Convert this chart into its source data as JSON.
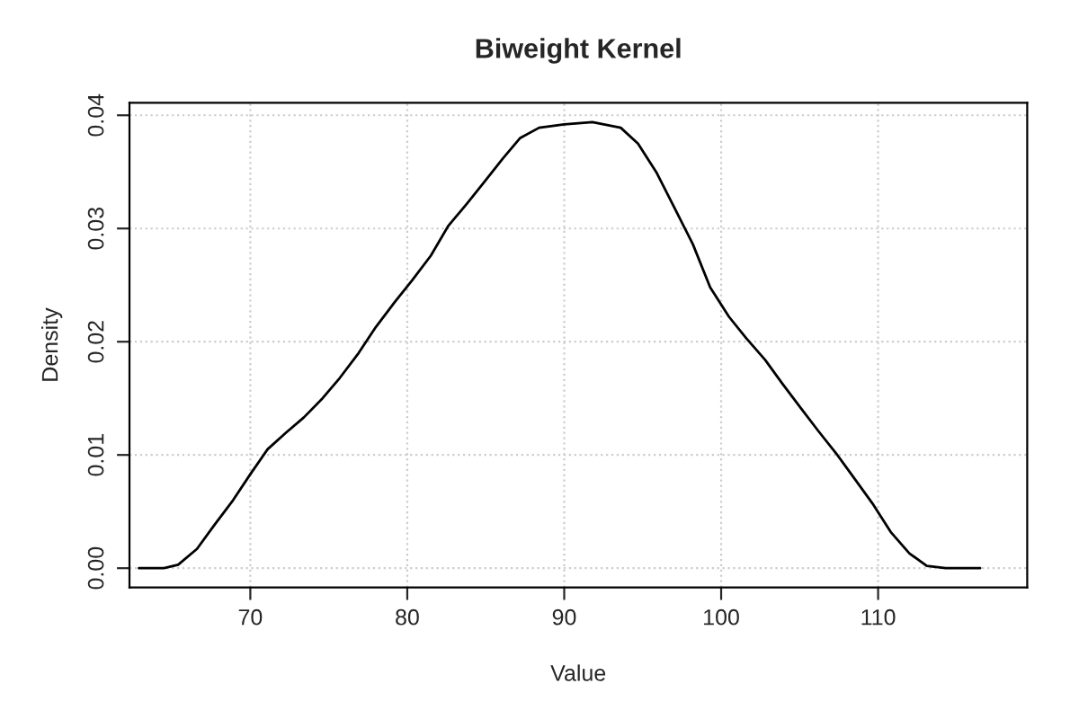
{
  "chart_data": {
    "type": "line",
    "title": "Biweight Kernel",
    "xlabel": "Value",
    "ylabel": "Density",
    "x": [
      62.9,
      64.5,
      65.4,
      66.6,
      67.7,
      68.9,
      70,
      71.1,
      72.3,
      73.4,
      74.6,
      75.7,
      76.9,
      78,
      79.2,
      80.3,
      81.5,
      82.6,
      83.8,
      84.9,
      86.1,
      87.2,
      88.4,
      90,
      91.8,
      93.6,
      94.7,
      95.9,
      97,
      98.2,
      99.3,
      100.5,
      101.6,
      102.8,
      103.9,
      105.1,
      106.2,
      107.4,
      108.5,
      109.7,
      110.8,
      112,
      113.1,
      114.3,
      116.5
    ],
    "series": [
      {
        "color": "#000000",
        "values": [
          0,
          0,
          0.0003,
          0.0017,
          0.0038,
          0.006,
          0.0083,
          0.0105,
          0.012,
          0.0133,
          0.015,
          0.0168,
          0.019,
          0.0213,
          0.0235,
          0.0254,
          0.0276,
          0.0302,
          0.0322,
          0.0341,
          0.0362,
          0.038,
          0.0389,
          0.0392,
          0.0394,
          0.0389,
          0.0375,
          0.0349,
          0.0319,
          0.0286,
          0.0248,
          0.0222,
          0.0203,
          0.0184,
          0.0163,
          0.0141,
          0.0121,
          0.01,
          0.0079,
          0.0056,
          0.0032,
          0.0013,
          0.0002,
          0,
          0
        ]
      }
    ],
    "xlim": [
      62.3,
      119.5
    ],
    "ylim": [
      -0.0017,
      0.0411
    ],
    "xticks": [
      70,
      80,
      90,
      100,
      110
    ],
    "yticks": [
      {
        "value": 0,
        "label": "0.00"
      },
      0.01,
      0.02,
      0.03,
      0.04
    ],
    "grid": true,
    "marker": "none",
    "line_style": "solid"
  }
}
